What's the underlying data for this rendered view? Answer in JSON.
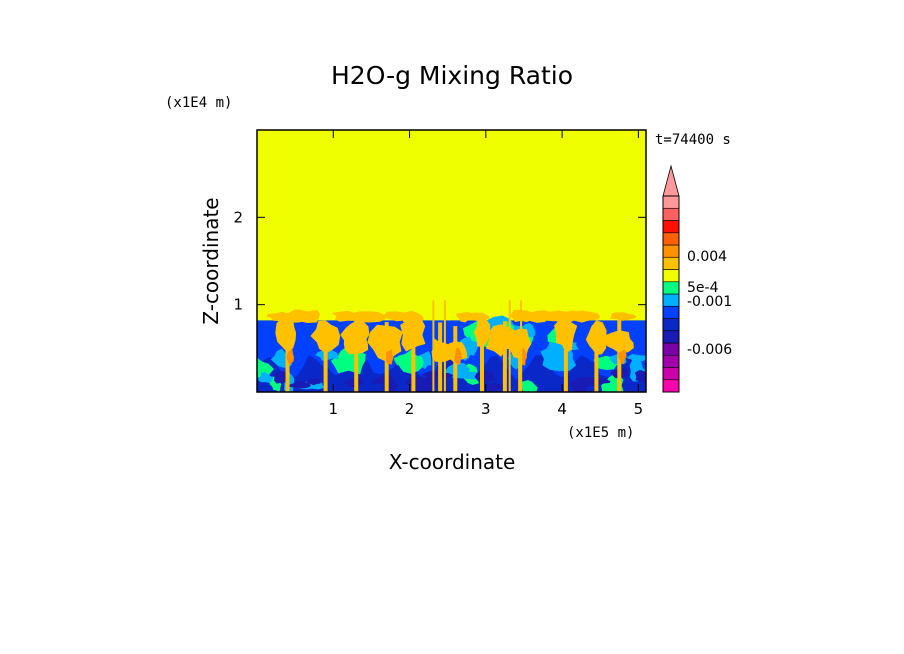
{
  "chart_data": {
    "type": "heatmap",
    "title": "H2O-g Mixing Ratio",
    "xlabel": "X-coordinate",
    "ylabel": "Z-coordinate",
    "x_unit_label": "(x1E5 m)",
    "y_unit_label": "(x1E4 m)",
    "time_label": "t=74400 s",
    "xlim": [
      0,
      5.1
    ],
    "ylim": [
      0,
      3.0
    ],
    "x_ticks": [
      {
        "value": 1,
        "label": "1"
      },
      {
        "value": 2,
        "label": "2"
      },
      {
        "value": 3,
        "label": "3"
      },
      {
        "value": 4,
        "label": "4"
      },
      {
        "value": 5,
        "label": "5"
      }
    ],
    "y_ticks": [
      {
        "value": 1,
        "label": "1"
      },
      {
        "value": 2,
        "label": "2"
      }
    ],
    "upper_layer_color": "#f0ff00",
    "boundary_layer_top_z": 0.82,
    "colorbar": {
      "colors_bottom_to_top": [
        "#ff00aa",
        "#cc00aa",
        "#a000aa",
        "#7a00a8",
        "#1a1ab4",
        "#0a28c8",
        "#0040ff",
        "#00b0ff",
        "#00ff80",
        "#f0ff00",
        "#ffc000",
        "#ff9000",
        "#ff6000",
        "#ff1000",
        "#ff6060",
        "#ff9999"
      ],
      "extend_arrow_color": "#ff9999",
      "labels": [
        {
          "label": "0.004",
          "position": 0.695
        },
        {
          "label": "5e-4",
          "position": 0.535
        },
        {
          "label": "-0.001",
          "position": 0.465
        },
        {
          "label": "-0.006",
          "position": 0.22
        }
      ]
    },
    "convective_columns_x": [
      0.4,
      0.9,
      1.3,
      1.7,
      2.05,
      2.4,
      2.6,
      2.95,
      3.25,
      3.45,
      4.05,
      4.45,
      4.75
    ]
  }
}
